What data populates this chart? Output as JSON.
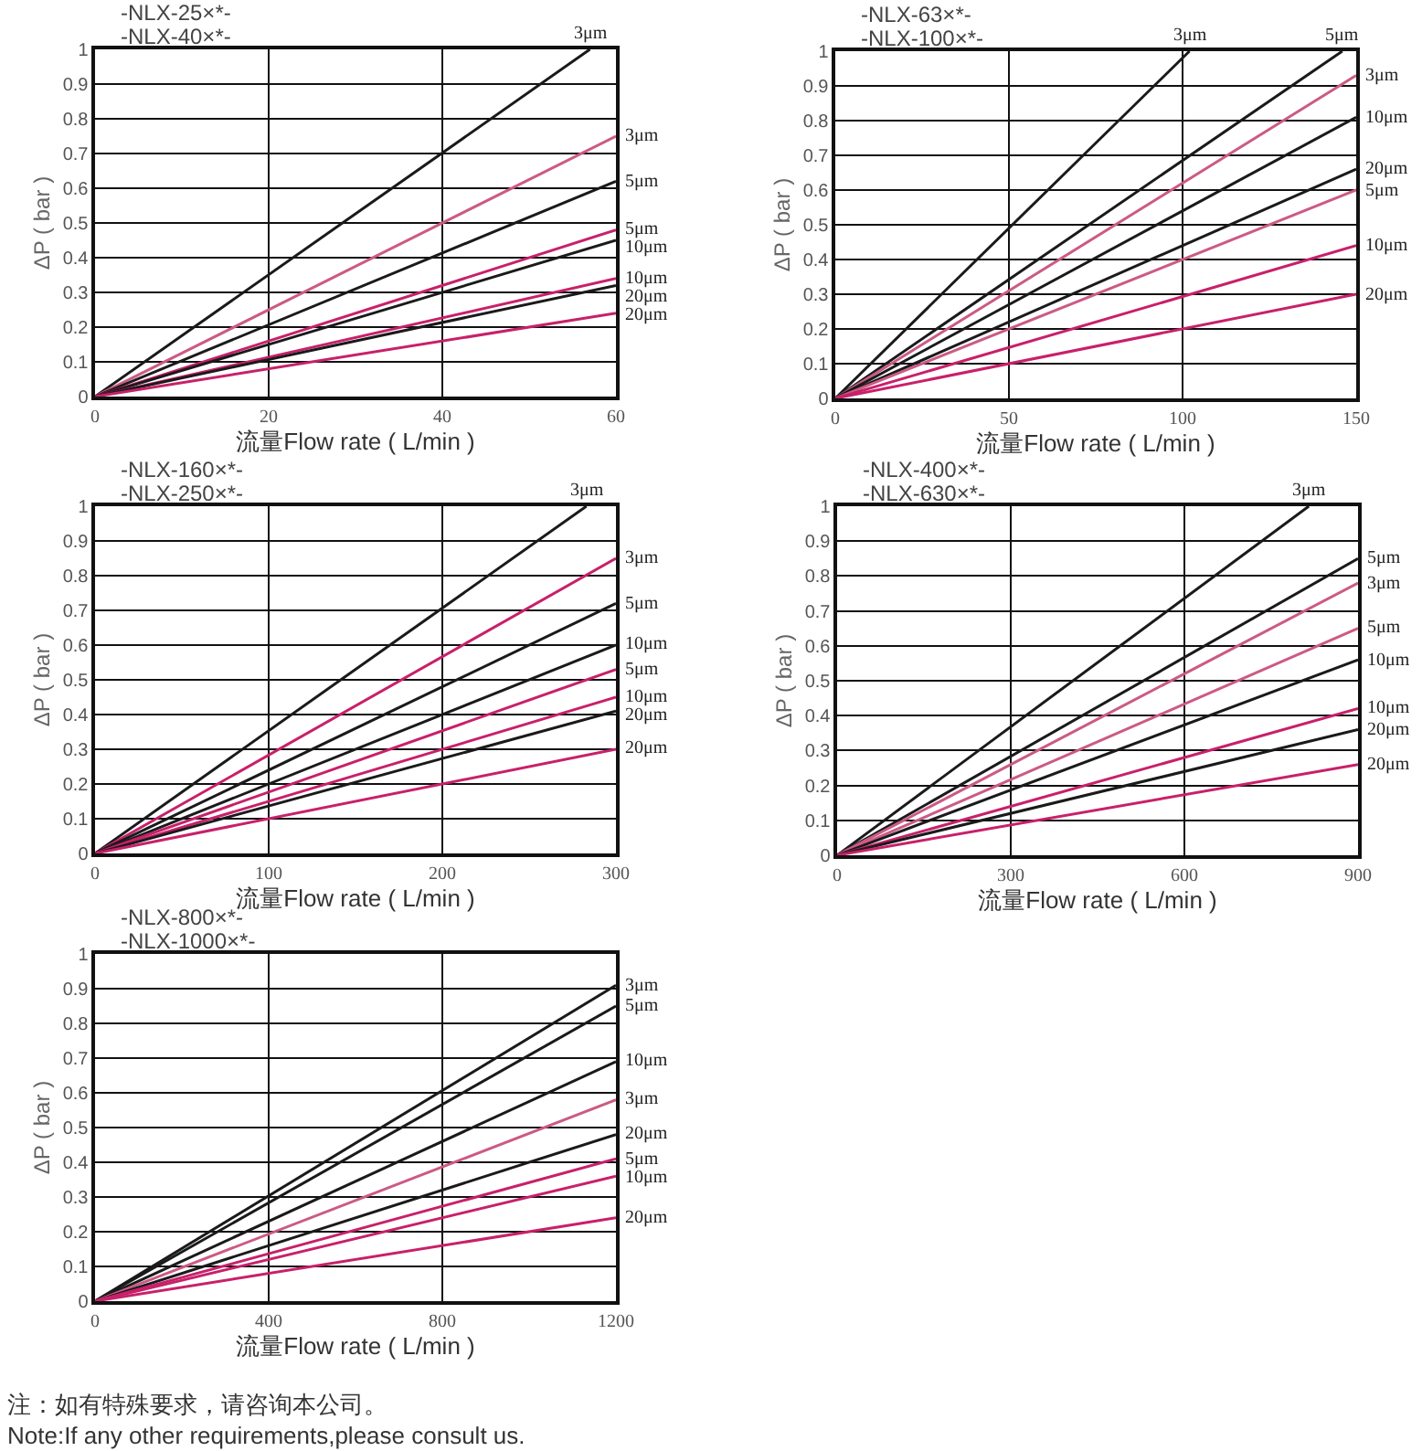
{
  "chart_data": [
    {
      "type": "line",
      "xlabel": "流量Flow rate ( L/min )",
      "ylabel": "ΔP ( bar )",
      "annotations": [
        "-NLX-25×*-",
        "-NLX-40×*-"
      ],
      "xlim": [
        0,
        60
      ],
      "ylim": [
        0,
        1
      ],
      "xticks": [
        0,
        20,
        40,
        60
      ],
      "yticks": [
        0,
        0.1,
        0.2,
        0.3,
        0.4,
        0.5,
        0.6,
        0.7,
        0.8,
        0.9,
        1
      ],
      "grid": true,
      "series": [
        {
          "name": "3μm",
          "color": "#1a1a1a",
          "x": [
            0,
            57
          ],
          "values": [
            0,
            1
          ]
        },
        {
          "name": "3μm",
          "color": "#cc5a85",
          "x": [
            0,
            60
          ],
          "values": [
            0,
            0.75
          ]
        },
        {
          "name": "5μm",
          "color": "#1a1a1a",
          "x": [
            0,
            60
          ],
          "values": [
            0,
            0.62
          ]
        },
        {
          "name": "5μm",
          "color": "#c8206a",
          "x": [
            0,
            60
          ],
          "values": [
            0,
            0.48
          ]
        },
        {
          "name": "10μm",
          "color": "#1a1a1a",
          "x": [
            0,
            60
          ],
          "values": [
            0,
            0.45
          ]
        },
        {
          "name": "10μm",
          "color": "#c8206a",
          "x": [
            0,
            60
          ],
          "values": [
            0,
            0.34
          ]
        },
        {
          "name": "20μm",
          "color": "#1a1a1a",
          "x": [
            0,
            60
          ],
          "values": [
            0,
            0.32
          ]
        },
        {
          "name": "20μm",
          "color": "#c8206a",
          "x": [
            0,
            60
          ],
          "values": [
            0,
            0.24
          ]
        }
      ]
    },
    {
      "type": "line",
      "xlabel": "流量Flow rate ( L/min )",
      "ylabel": "ΔP ( bar )",
      "annotations": [
        "-NLX-63×*-",
        "-NLX-100×*-"
      ],
      "xlim": [
        0,
        150
      ],
      "ylim": [
        0,
        1
      ],
      "xticks": [
        0,
        50,
        100,
        150
      ],
      "yticks": [
        0,
        0.1,
        0.2,
        0.3,
        0.4,
        0.5,
        0.6,
        0.7,
        0.8,
        0.9,
        1
      ],
      "grid": true,
      "series": [
        {
          "name": "3μm",
          "color": "#1a1a1a",
          "x": [
            0,
            102
          ],
          "values": [
            0,
            1
          ]
        },
        {
          "name": "5μm",
          "color": "#1a1a1a",
          "x": [
            0,
            146
          ],
          "values": [
            0,
            1
          ]
        },
        {
          "name": "3μm",
          "color": "#cc5a85",
          "x": [
            0,
            150
          ],
          "values": [
            0,
            0.93
          ]
        },
        {
          "name": "10μm",
          "color": "#1a1a1a",
          "x": [
            0,
            150
          ],
          "values": [
            0,
            0.81
          ]
        },
        {
          "name": "20μm",
          "color": "#1a1a1a",
          "x": [
            0,
            150
          ],
          "values": [
            0,
            0.66
          ]
        },
        {
          "name": "5μm",
          "color": "#cc5a85",
          "x": [
            0,
            150
          ],
          "values": [
            0,
            0.6
          ]
        },
        {
          "name": "10μm",
          "color": "#c8206a",
          "x": [
            0,
            150
          ],
          "values": [
            0,
            0.44
          ]
        },
        {
          "name": "20μm",
          "color": "#c8206a",
          "x": [
            0,
            150
          ],
          "values": [
            0,
            0.3
          ]
        }
      ]
    },
    {
      "type": "line",
      "xlabel": "流量Flow rate ( L/min )",
      "ylabel": "ΔP ( bar )",
      "annotations": [
        "-NLX-160×*-",
        "-NLX-250×*-"
      ],
      "xlim": [
        0,
        300
      ],
      "ylim": [
        0,
        1
      ],
      "xticks": [
        0,
        100,
        200,
        300
      ],
      "yticks": [
        0,
        0.1,
        0.2,
        0.3,
        0.4,
        0.5,
        0.6,
        0.7,
        0.8,
        0.9,
        1
      ],
      "grid": true,
      "series": [
        {
          "name": "3μm",
          "color": "#1a1a1a",
          "x": [
            0,
            283
          ],
          "values": [
            0,
            1
          ]
        },
        {
          "name": "3μm",
          "color": "#c8206a",
          "x": [
            0,
            300
          ],
          "values": [
            0,
            0.85
          ]
        },
        {
          "name": "5μm",
          "color": "#1a1a1a",
          "x": [
            0,
            300
          ],
          "values": [
            0,
            0.72
          ]
        },
        {
          "name": "10μm",
          "color": "#1a1a1a",
          "x": [
            0,
            300
          ],
          "values": [
            0,
            0.6
          ]
        },
        {
          "name": "5μm",
          "color": "#c8206a",
          "x": [
            0,
            300
          ],
          "values": [
            0,
            0.53
          ]
        },
        {
          "name": "10μm",
          "color": "#c8206a",
          "x": [
            0,
            300
          ],
          "values": [
            0,
            0.45
          ]
        },
        {
          "name": "20μm",
          "color": "#1a1a1a",
          "x": [
            0,
            300
          ],
          "values": [
            0,
            0.41
          ]
        },
        {
          "name": "20μm",
          "color": "#c8206a",
          "x": [
            0,
            300
          ],
          "values": [
            0,
            0.3
          ]
        }
      ]
    },
    {
      "type": "line",
      "xlabel": "流量Flow rate ( L/min )",
      "ylabel": "ΔP ( bar )",
      "annotations": [
        "-NLX-400×*-",
        "-NLX-630×*-"
      ],
      "xlim": [
        0,
        900
      ],
      "ylim": [
        0,
        1
      ],
      "xticks": [
        0,
        300,
        600,
        900
      ],
      "yticks": [
        0,
        0.1,
        0.2,
        0.3,
        0.4,
        0.5,
        0.6,
        0.7,
        0.8,
        0.9,
        1
      ],
      "grid": true,
      "series": [
        {
          "name": "3μm",
          "color": "#1a1a1a",
          "x": [
            0,
            815
          ],
          "values": [
            0,
            1
          ]
        },
        {
          "name": "5μm",
          "color": "#1a1a1a",
          "x": [
            0,
            900
          ],
          "values": [
            0,
            0.85
          ]
        },
        {
          "name": "3μm",
          "color": "#cc5a85",
          "x": [
            0,
            900
          ],
          "values": [
            0,
            0.78
          ]
        },
        {
          "name": "5μm",
          "color": "#cc5a85",
          "x": [
            0,
            900
          ],
          "values": [
            0,
            0.65
          ]
        },
        {
          "name": "10μm",
          "color": "#1a1a1a",
          "x": [
            0,
            900
          ],
          "values": [
            0,
            0.56
          ]
        },
        {
          "name": "10μm",
          "color": "#c8206a",
          "x": [
            0,
            900
          ],
          "values": [
            0,
            0.42
          ]
        },
        {
          "name": "20μm",
          "color": "#1a1a1a",
          "x": [
            0,
            900
          ],
          "values": [
            0,
            0.36
          ]
        },
        {
          "name": "20μm",
          "color": "#c8206a",
          "x": [
            0,
            900
          ],
          "values": [
            0,
            0.26
          ]
        }
      ]
    },
    {
      "type": "line",
      "xlabel": "流量Flow rate ( L/min )",
      "ylabel": "ΔP ( bar )",
      "annotations": [
        "-NLX-800×*-",
        "-NLX-1000×*-",
        "注：如有特殊要求，请咨询本公司。",
        "Note:If any other requirements,please consult us."
      ],
      "xlim": [
        0,
        1200
      ],
      "ylim": [
        0,
        1
      ],
      "xticks": [
        0,
        400,
        800,
        1200
      ],
      "yticks": [
        0,
        0.1,
        0.2,
        0.3,
        0.4,
        0.5,
        0.6,
        0.7,
        0.8,
        0.9,
        1
      ],
      "grid": true,
      "series": [
        {
          "name": "3μm",
          "color": "#1a1a1a",
          "x": [
            0,
            1200
          ],
          "values": [
            0,
            0.91
          ]
        },
        {
          "name": "5μm",
          "color": "#1a1a1a",
          "x": [
            0,
            1200
          ],
          "values": [
            0,
            0.85
          ]
        },
        {
          "name": "10μm",
          "color": "#1a1a1a",
          "x": [
            0,
            1200
          ],
          "values": [
            0,
            0.69
          ]
        },
        {
          "name": "3μm",
          "color": "#cc5a85",
          "x": [
            0,
            1200
          ],
          "values": [
            0,
            0.58
          ]
        },
        {
          "name": "20μm",
          "color": "#1a1a1a",
          "x": [
            0,
            1200
          ],
          "values": [
            0,
            0.48
          ]
        },
        {
          "name": "5μm",
          "color": "#c8206a",
          "x": [
            0,
            1200
          ],
          "values": [
            0,
            0.41
          ]
        },
        {
          "name": "10μm",
          "color": "#c8206a",
          "x": [
            0,
            1200
          ],
          "values": [
            0,
            0.36
          ]
        },
        {
          "name": "20μm",
          "color": "#c8206a",
          "x": [
            0,
            1200
          ],
          "values": [
            0,
            0.24
          ]
        }
      ]
    }
  ]
}
